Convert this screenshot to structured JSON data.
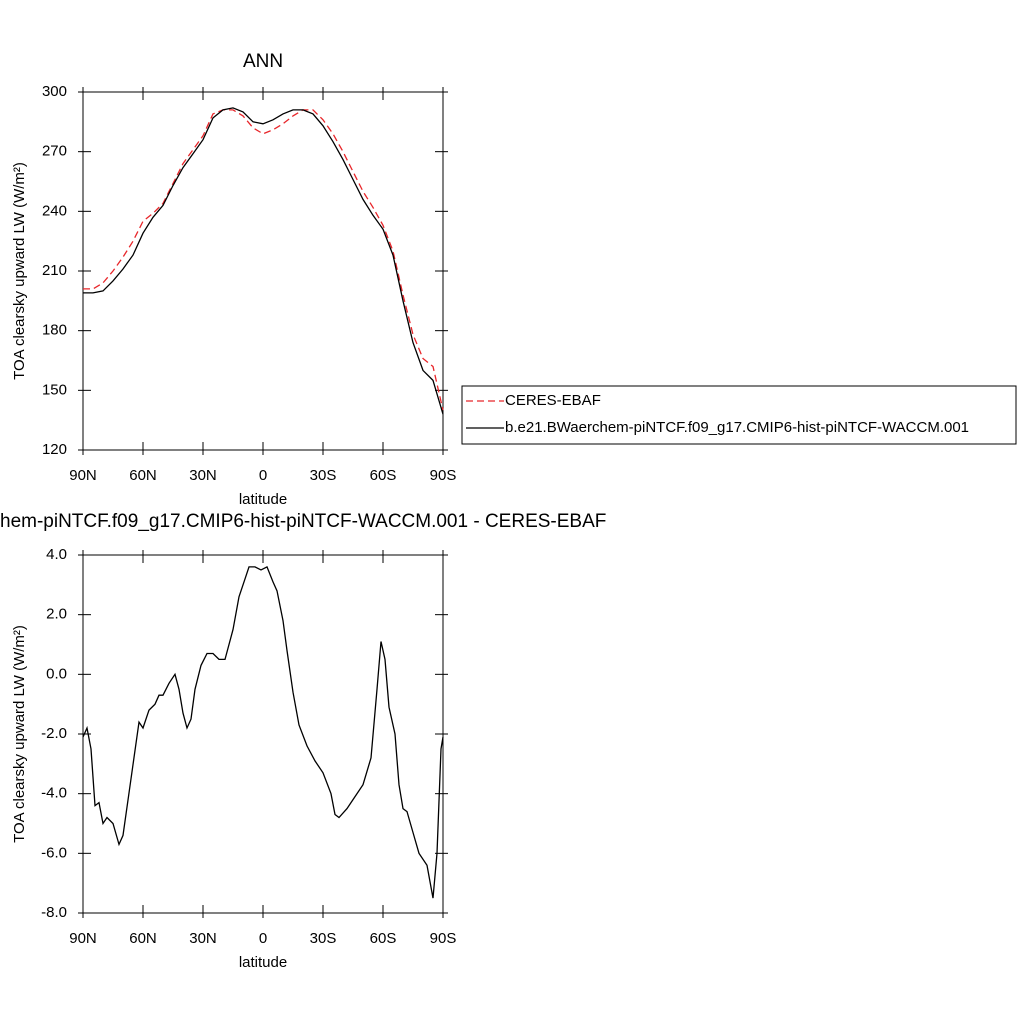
{
  "chart_data": [
    {
      "type": "line",
      "title": "ANN",
      "xlabel": "latitude",
      "ylabel": "TOA clearsky upward LW (W/m²)",
      "x": [
        90,
        85,
        80,
        75,
        70,
        65,
        60,
        55,
        50,
        45,
        40,
        35,
        30,
        25,
        20,
        15,
        10,
        5,
        0,
        -5,
        -10,
        -15,
        -20,
        -25,
        -30,
        -35,
        -40,
        -45,
        -50,
        -55,
        -60,
        -65,
        -70,
        -75,
        -80,
        -85,
        -90
      ],
      "series": [
        {
          "name": "CERES-EBAF",
          "color": "#e8262a",
          "linestyle": "dashed",
          "values": [
            201,
            201,
            204,
            210,
            217,
            225,
            235,
            239,
            244,
            254,
            264,
            271,
            278,
            289,
            291,
            291,
            288,
            282,
            279,
            281,
            284,
            288,
            291,
            291,
            286,
            279,
            270,
            260,
            250,
            242,
            233,
            220,
            198,
            178,
            166,
            162,
            140
          ]
        },
        {
          "name": "b.e21.BWaerchem-piNTCF.f09_g17.CMIP6-hist-piNTCF-WACCM.001",
          "color": "#000000",
          "linestyle": "solid",
          "values": [
            199,
            199,
            200,
            205,
            211,
            218,
            229,
            237,
            243,
            253,
            262,
            269,
            276,
            287,
            291,
            292,
            290,
            285,
            284,
            286,
            289,
            291,
            291,
            289,
            283,
            275,
            266,
            256,
            246,
            238,
            231,
            218,
            195,
            174,
            160,
            155,
            138
          ]
        }
      ],
      "xlim": [
        90,
        -90
      ],
      "xticks": [
        {
          "value": 90,
          "label": "90N"
        },
        {
          "value": 60,
          "label": "60N"
        },
        {
          "value": 30,
          "label": "30N"
        },
        0,
        {
          "value": -30,
          "label": "30S"
        },
        {
          "value": -60,
          "label": "60S"
        },
        {
          "value": -90,
          "label": "90S"
        }
      ],
      "ylim": [
        120,
        300
      ],
      "yticks": [
        120,
        150,
        180,
        210,
        240,
        270,
        300
      ]
    },
    {
      "type": "line",
      "title": "hem-piNTCF.f09_g17.CMIP6-hist-piNTCF-WACCM.001 - CERES-EBAF",
      "xlabel": "latitude",
      "ylabel": "TOA clearsky upward LW (W/m²)",
      "x": [
        90,
        88,
        86,
        84,
        82,
        80,
        78,
        75,
        72,
        70,
        66,
        62,
        60,
        57,
        54,
        52,
        50,
        47,
        44,
        42,
        40,
        38,
        36,
        34,
        31,
        28,
        25,
        22,
        19,
        15,
        12,
        9,
        7,
        4,
        1,
        -2,
        -5,
        -7,
        -10,
        -12,
        -15,
        -18,
        -22,
        -26,
        -30,
        -34,
        -36,
        -38,
        -42,
        -45,
        -50,
        -54,
        -57,
        -59,
        -61,
        -63,
        -66,
        -68,
        -70,
        -72,
        -75,
        -78,
        -82,
        -85,
        -87,
        -89,
        -90
      ],
      "series": [
        {
          "color": "#000000",
          "linestyle": "solid",
          "values": [
            -2.1,
            -1.8,
            -2.5,
            -4.4,
            -4.3,
            -5.0,
            -4.8,
            -5.0,
            -5.7,
            -5.4,
            -3.5,
            -1.6,
            -1.8,
            -1.2,
            -1.0,
            -0.7,
            -0.7,
            -0.3,
            0.0,
            -0.5,
            -1.3,
            -1.8,
            -1.5,
            -0.5,
            0.3,
            0.7,
            0.7,
            0.5,
            0.5,
            1.5,
            2.6,
            3.2,
            3.6,
            3.6,
            3.5,
            3.6,
            3.1,
            2.8,
            1.8,
            0.8,
            -0.6,
            -1.7,
            -2.4,
            -2.9,
            -3.3,
            -4.0,
            -4.7,
            -4.8,
            -4.5,
            -4.2,
            -3.7,
            -2.8,
            -0.5,
            1.1,
            0.5,
            -1.1,
            -2.0,
            -3.7,
            -4.5,
            -4.6,
            -5.3,
            -6.0,
            -6.4,
            -7.5,
            -6.0,
            -2.5,
            -2.1
          ]
        }
      ],
      "xlim": [
        90,
        -90
      ],
      "xticks": [
        {
          "value": 90,
          "label": "90N"
        },
        {
          "value": 60,
          "label": "60N"
        },
        {
          "value": 30,
          "label": "30N"
        },
        0,
        {
          "value": -30,
          "label": "30S"
        },
        {
          "value": -60,
          "label": "60S"
        },
        {
          "value": -90,
          "label": "90S"
        }
      ],
      "ylim": [
        -8,
        4
      ],
      "yticks": [
        {
          "value": -8,
          "label": "-8.0"
        },
        {
          "value": -6,
          "label": "-6.0"
        },
        {
          "value": -4,
          "label": "-4.0"
        },
        {
          "value": -2,
          "label": "-2.0"
        },
        {
          "value": 0,
          "label": "0.0"
        },
        {
          "value": 2,
          "label": "2.0"
        },
        {
          "value": 4,
          "label": "4.0"
        }
      ]
    }
  ]
}
